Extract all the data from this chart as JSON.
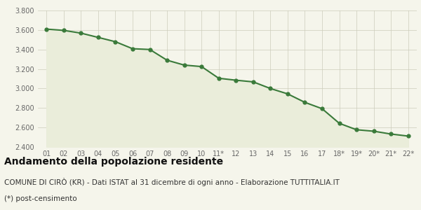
{
  "x_labels": [
    "01",
    "02",
    "03",
    "04",
    "05",
    "06",
    "07",
    "08",
    "09",
    "10",
    "11*",
    "12",
    "13",
    "14",
    "15",
    "16",
    "17",
    "18*",
    "19*",
    "20*",
    "21*",
    "22*"
  ],
  "y_values": [
    3609,
    3596,
    3568,
    3524,
    3480,
    3408,
    3400,
    3290,
    3240,
    3225,
    3105,
    3085,
    3068,
    3000,
    2945,
    2858,
    2793,
    2643,
    2577,
    2562,
    2533,
    2512
  ],
  "line_color": "#3a7a3a",
  "fill_color": "#eaedda",
  "marker": "o",
  "marker_size": 3.5,
  "line_width": 1.5,
  "ylim": [
    2400,
    3800
  ],
  "yticks": [
    2400,
    2600,
    2800,
    3000,
    3200,
    3400,
    3600,
    3800
  ],
  "bg_color": "#f5f5eb",
  "grid_color": "#ccccbb",
  "title": "Andamento della popolazione residente",
  "subtitle": "COMUNE DI CIRÒ (KR) - Dati ISTAT al 31 dicembre di ogni anno - Elaborazione TUTTITALIA.IT",
  "footnote": "(*) post-censimento",
  "title_fontsize": 10,
  "subtitle_fontsize": 7.5,
  "footnote_fontsize": 7.5
}
